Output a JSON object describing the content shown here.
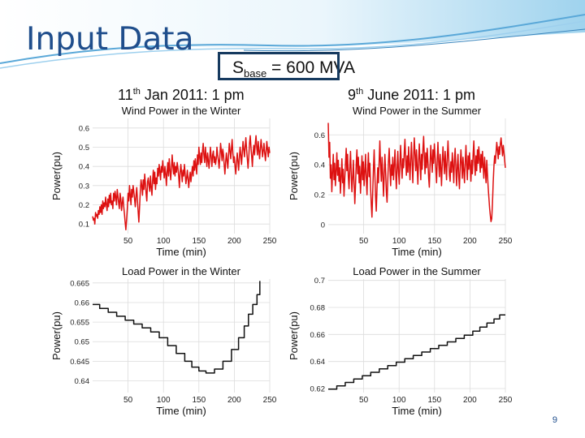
{
  "slide": {
    "title": "Input Data",
    "sbase": {
      "symbol": "S",
      "subscript": "base",
      "value": " = 600 MVA"
    },
    "winter_date": {
      "day": "11",
      "suffix": "th",
      "rest": " Jan 2011: 1 pm"
    },
    "summer_date": {
      "day": "9",
      "suffix": "th",
      "rest": " June 2011: 1 pm"
    },
    "page_number": "9"
  },
  "chart_data": [
    {
      "id": "wind-winter",
      "type": "line",
      "title": "Wind Power in the Winter",
      "xlabel": "Time (min)",
      "ylabel": "Power(pu)",
      "xlim": [
        0,
        250
      ],
      "ylim": [
        0.05,
        0.65
      ],
      "xticks": [
        50,
        100,
        150,
        200,
        250
      ],
      "yticks": [
        0.1,
        0.2,
        0.3,
        0.4,
        0.5,
        0.6
      ],
      "ytick_labels": [
        "0.1",
        "0.2",
        "0.3",
        "0.4",
        "0.5",
        "0.6"
      ],
      "grid": true,
      "color": "#dd1111",
      "series": [
        {
          "values": [
            0.14,
            0.12,
            0.13,
            0.1,
            0.16,
            0.14,
            0.15,
            0.13,
            0.17,
            0.15,
            0.19,
            0.16,
            0.2,
            0.15,
            0.22,
            0.18,
            0.21,
            0.19,
            0.24,
            0.2,
            0.17,
            0.23,
            0.19,
            0.25,
            0.21,
            0.26,
            0.2,
            0.22,
            0.18,
            0.26,
            0.22,
            0.27,
            0.24,
            0.2,
            0.28,
            0.25,
            0.21,
            0.18,
            0.26,
            0.23,
            0.17,
            0.21,
            0.24,
            0.19,
            0.15,
            0.11,
            0.07,
            0.12,
            0.18,
            0.26,
            0.22,
            0.3,
            0.25,
            0.2,
            0.28,
            0.24,
            0.3,
            0.27,
            0.23,
            0.19,
            0.25,
            0.29,
            0.22,
            0.16,
            0.11,
            0.19,
            0.27,
            0.33,
            0.3,
            0.25,
            0.33,
            0.28,
            0.36,
            0.31,
            0.26,
            0.22,
            0.32,
            0.34,
            0.3,
            0.27,
            0.35,
            0.29,
            0.25,
            0.33,
            0.38,
            0.31,
            0.37,
            0.28,
            0.34,
            0.31,
            0.39,
            0.35,
            0.41,
            0.37,
            0.33,
            0.4,
            0.37,
            0.43,
            0.38,
            0.34,
            0.4,
            0.36,
            0.3,
            0.37,
            0.42,
            0.35,
            0.44,
            0.38,
            0.33,
            0.39,
            0.46,
            0.4,
            0.36,
            0.42,
            0.35,
            0.4,
            0.37,
            0.42,
            0.39,
            0.35,
            0.29,
            0.37,
            0.41,
            0.37,
            0.32,
            0.38,
            0.35,
            0.41,
            0.36,
            0.31,
            0.34,
            0.38,
            0.33,
            0.29,
            0.34,
            0.37,
            0.32,
            0.36,
            0.4,
            0.35,
            0.43,
            0.38,
            0.44,
            0.4,
            0.36,
            0.46,
            0.41,
            0.5,
            0.45,
            0.41,
            0.47,
            0.42,
            0.48,
            0.52,
            0.46,
            0.42,
            0.5,
            0.45,
            0.4,
            0.47,
            0.43,
            0.39,
            0.44,
            0.5,
            0.45,
            0.4,
            0.46,
            0.48,
            0.42,
            0.45,
            0.41,
            0.44,
            0.5,
            0.46,
            0.43,
            0.39,
            0.45,
            0.52,
            0.48,
            0.43,
            0.49,
            0.46,
            0.41,
            0.36,
            0.42,
            0.47,
            0.43,
            0.39,
            0.46,
            0.52,
            0.48,
            0.44,
            0.49,
            0.54,
            0.47,
            0.42,
            0.45,
            0.4,
            0.36,
            0.42,
            0.47,
            0.43,
            0.38,
            0.44,
            0.5,
            0.46,
            0.41,
            0.47,
            0.53,
            0.49,
            0.45,
            0.5,
            0.55,
            0.49,
            0.44,
            0.39,
            0.45,
            0.52,
            0.56,
            0.5,
            0.45,
            0.4,
            0.47,
            0.51,
            0.46,
            0.52,
            0.56,
            0.5,
            0.46,
            0.53,
            0.48,
            0.44,
            0.49,
            0.54,
            0.5,
            0.45,
            0.48,
            0.52,
            0.47,
            0.43,
            0.48,
            0.53,
            0.49,
            0.45,
            0.5,
            0.47
          ]
        }
      ]
    },
    {
      "id": "wind-summer",
      "type": "line",
      "title": "Wind Power in the Summer",
      "xlabel": "Time (min)",
      "ylabel": "Power(pu)",
      "xlim": [
        0,
        250
      ],
      "ylim": [
        -0.06,
        0.71
      ],
      "xticks": [
        50,
        100,
        150,
        200,
        250
      ],
      "yticks": [
        0,
        0.2,
        0.4,
        0.6
      ],
      "ytick_labels": [
        "0",
        "0.2",
        "0.4",
        "0.6"
      ],
      "grid": true,
      "color": "#dd1111",
      "series": [
        {
          "values": [
            0.68,
            0.45,
            0.55,
            0.31,
            0.4,
            0.22,
            0.35,
            0.47,
            0.3,
            0.41,
            0.26,
            0.36,
            0.48,
            0.33,
            0.43,
            0.29,
            0.38,
            0.21,
            0.32,
            0.44,
            0.28,
            0.37,
            0.19,
            0.3,
            0.41,
            0.51,
            0.36,
            0.47,
            0.32,
            0.24,
            0.38,
            0.49,
            0.35,
            0.22,
            0.31,
            0.43,
            0.28,
            0.14,
            0.25,
            0.4,
            0.5,
            0.34,
            0.45,
            0.28,
            0.39,
            0.21,
            0.33,
            0.46,
            0.3,
            0.42,
            0.26,
            0.35,
            0.47,
            0.31,
            0.2,
            0.36,
            0.48,
            0.32,
            0.41,
            0.25,
            0.13,
            0.05,
            0.21,
            0.37,
            0.5,
            0.33,
            0.18,
            0.09,
            0.24,
            0.38,
            0.28,
            0.43,
            0.56,
            0.4,
            0.29,
            0.45,
            0.34,
            0.19,
            0.31,
            0.47,
            0.36,
            0.22,
            0.15,
            0.3,
            0.42,
            0.51,
            0.38,
            0.26,
            0.4,
            0.33,
            0.45,
            0.3,
            0.39,
            0.5,
            0.36,
            0.24,
            0.37,
            0.49,
            0.35,
            0.27,
            0.42,
            0.53,
            0.4,
            0.31,
            0.44,
            0.38,
            0.49,
            0.57,
            0.43,
            0.33,
            0.46,
            0.35,
            0.52,
            0.41,
            0.3,
            0.44,
            0.55,
            0.4,
            0.28,
            0.45,
            0.58,
            0.47,
            0.36,
            0.5,
            0.39,
            0.27,
            0.43,
            0.54,
            0.41,
            0.3,
            0.47,
            0.37,
            0.5,
            0.59,
            0.45,
            0.34,
            0.48,
            0.38,
            0.51,
            0.42,
            0.31,
            0.25,
            0.4,
            0.53,
            0.44,
            0.35,
            0.5,
            0.41,
            0.54,
            0.46,
            0.37,
            0.28,
            0.44,
            0.55,
            0.42,
            0.32,
            0.47,
            0.38,
            0.26,
            0.41,
            0.52,
            0.43,
            0.34,
            0.49,
            0.4,
            0.3,
            0.45,
            0.56,
            0.44,
            0.33,
            0.29,
            0.42,
            0.35,
            0.48,
            0.39,
            0.28,
            0.43,
            0.51,
            0.37,
            0.26,
            0.4,
            0.47,
            0.32,
            0.24,
            0.39,
            0.5,
            0.41,
            0.31,
            0.45,
            0.36,
            0.28,
            0.42,
            0.53,
            0.4,
            0.3,
            0.46,
            0.37,
            0.48,
            0.39,
            0.29,
            0.43,
            0.34,
            0.47,
            0.56,
            0.42,
            0.33,
            0.46,
            0.36,
            0.5,
            0.41,
            0.52,
            0.44,
            0.35,
            0.47,
            0.38,
            0.49,
            0.4,
            0.31,
            0.45,
            0.36,
            0.28,
            0.43,
            0.34,
            0.25,
            0.18,
            0.11,
            0.06,
            0.02,
            0.04,
            0.14,
            0.28,
            0.39,
            0.46,
            0.41,
            0.48,
            0.55,
            0.5,
            0.44,
            0.52,
            0.47,
            0.54,
            0.58,
            0.52,
            0.46,
            0.53,
            0.49,
            0.43,
            0.38
          ]
        }
      ]
    },
    {
      "id": "load-winter",
      "type": "line",
      "title": "Load Power in the Winter",
      "xlabel": "Time (min)",
      "ylabel": "Power(pu)",
      "xlim": [
        0,
        250
      ],
      "ylim": [
        0.637,
        0.666
      ],
      "xticks": [
        50,
        100,
        150,
        200,
        250
      ],
      "yticks": [
        0.64,
        0.645,
        0.65,
        0.655,
        0.66,
        0.665
      ],
      "ytick_labels": [
        "0.64",
        "0.645",
        "0.65",
        "0.655",
        "0.66",
        "0.665"
      ],
      "grid": true,
      "color": "#111111",
      "series": [
        {
          "steps": [
            [
              0,
              0.6595
            ],
            [
              10,
              0.6585
            ],
            [
              22,
              0.6575
            ],
            [
              34,
              0.6565
            ],
            [
              46,
              0.6555
            ],
            [
              58,
              0.6545
            ],
            [
              70,
              0.6535
            ],
            [
              82,
              0.6525
            ],
            [
              94,
              0.651
            ],
            [
              106,
              0.649
            ],
            [
              118,
              0.647
            ],
            [
              130,
              0.645
            ],
            [
              140,
              0.6435
            ],
            [
              150,
              0.6425
            ],
            [
              160,
              0.642
            ],
            [
              172,
              0.643
            ],
            [
              184,
              0.645
            ],
            [
              196,
              0.648
            ],
            [
              206,
              0.651
            ],
            [
              214,
              0.654
            ],
            [
              220,
              0.657
            ],
            [
              226,
              0.6595
            ],
            [
              232,
              0.662
            ],
            [
              236,
              0.6655
            ]
          ]
        }
      ]
    },
    {
      "id": "load-summer",
      "type": "line",
      "title": "Load Power in the Summer",
      "xlabel": "Time (min)",
      "ylabel": "Power(pu)",
      "xlim": [
        0,
        250
      ],
      "ylim": [
        0.617,
        0.701
      ],
      "xticks": [
        50,
        100,
        150,
        200,
        250
      ],
      "yticks": [
        0.62,
        0.64,
        0.66,
        0.68,
        0.7
      ],
      "ytick_labels": [
        "0.62",
        "0.64",
        "0.66",
        "0.68",
        "0.7"
      ],
      "grid": true,
      "color": "#111111",
      "series": [
        {
          "steps": [
            [
              0,
              0.6195
            ],
            [
              12,
              0.622
            ],
            [
              24,
              0.6245
            ],
            [
              36,
              0.627
            ],
            [
              48,
              0.6295
            ],
            [
              60,
              0.632
            ],
            [
              72,
              0.6345
            ],
            [
              84,
              0.637
            ],
            [
              96,
              0.6395
            ],
            [
              108,
              0.642
            ],
            [
              120,
              0.6445
            ],
            [
              132,
              0.647
            ],
            [
              144,
              0.6495
            ],
            [
              156,
              0.652
            ],
            [
              168,
              0.6545
            ],
            [
              180,
              0.657
            ],
            [
              192,
              0.6595
            ],
            [
              204,
              0.6625
            ],
            [
              214,
              0.6655
            ],
            [
              224,
              0.6685
            ],
            [
              234,
              0.6715
            ],
            [
              242,
              0.6745
            ],
            [
              250,
              0.6745
            ]
          ]
        }
      ]
    }
  ]
}
